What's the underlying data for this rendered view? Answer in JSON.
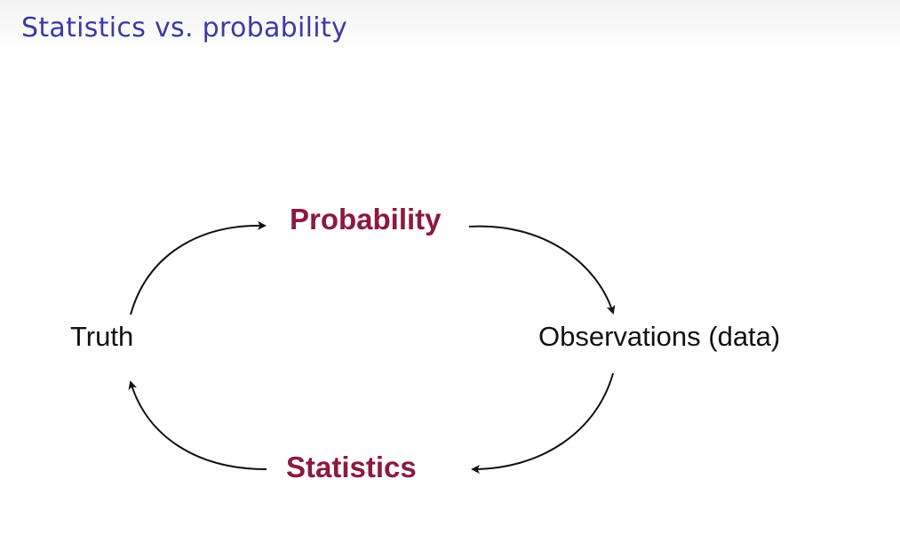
{
  "slide": {
    "title": "Statistics vs. probability"
  },
  "diagram": {
    "nodes": {
      "truth": "Truth",
      "observations": "Observations (data)",
      "probability": "Probability",
      "statistics": "Statistics"
    },
    "colors": {
      "title": "#3a3aa8",
      "emphasis": "#8c1a3c",
      "text": "#111111"
    }
  }
}
